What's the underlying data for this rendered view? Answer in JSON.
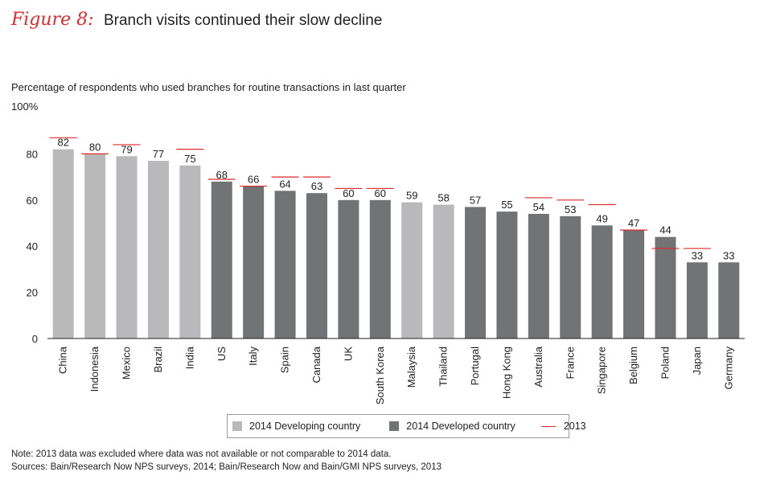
{
  "header": {
    "figure_label": "Figure 8:",
    "title": "Branch visits continued their slow decline"
  },
  "chart_data": {
    "type": "bar",
    "title": "Branch visits continued their slow decline",
    "subtitle": "Percentage of respondents who used branches for routine transactions in last quarter",
    "ymax_label": "100%",
    "ylim": [
      0,
      100
    ],
    "yticks": [
      0,
      20,
      40,
      60,
      80
    ],
    "xlabel": "",
    "ylabel": "",
    "categories": [
      "China",
      "Indonesia",
      "Mexico",
      "Brazil",
      "India",
      "US",
      "Italy",
      "Spain",
      "Canada",
      "UK",
      "South Korea",
      "Malaysia",
      "Thailand",
      "Portugal",
      "Hong Kong",
      "Australia",
      "France",
      "Singapore",
      "Belgium",
      "Poland",
      "Japan",
      "Germany"
    ],
    "values": [
      82,
      80,
      79,
      77,
      75,
      68,
      66,
      64,
      63,
      60,
      60,
      59,
      58,
      57,
      55,
      54,
      53,
      49,
      47,
      44,
      33,
      33
    ],
    "group": [
      "developing",
      "developing",
      "developing",
      "developing",
      "developing",
      "developed",
      "developed",
      "developed",
      "developed",
      "developed",
      "developed",
      "developing",
      "developing",
      "developed",
      "developed",
      "developed",
      "developed",
      "developed",
      "developed",
      "developed",
      "developed",
      "developed"
    ],
    "values_2013": [
      87,
      80,
      84,
      null,
      82,
      69,
      66,
      70,
      70,
      65,
      65,
      null,
      null,
      null,
      null,
      61,
      60,
      58,
      47,
      39,
      39,
      null
    ],
    "legend": {
      "developing": "2014 Developing country",
      "developed": "2014 Developed country",
      "line_2013": "2013"
    },
    "legend_position": "bottom-center",
    "grid": false
  },
  "colors": {
    "developing": "#b9b9bb",
    "developed": "#727375",
    "marker_2013": "#e0292b",
    "axis": "#222222"
  },
  "footnotes": {
    "note": "Note: 2013 data was excluded where data was not available or not comparable to 2014 data.",
    "sources": "Sources: Bain/Research Now NPS surveys, 2014; Bain/Research Now and Bain/GMI NPS surveys, 2013"
  }
}
